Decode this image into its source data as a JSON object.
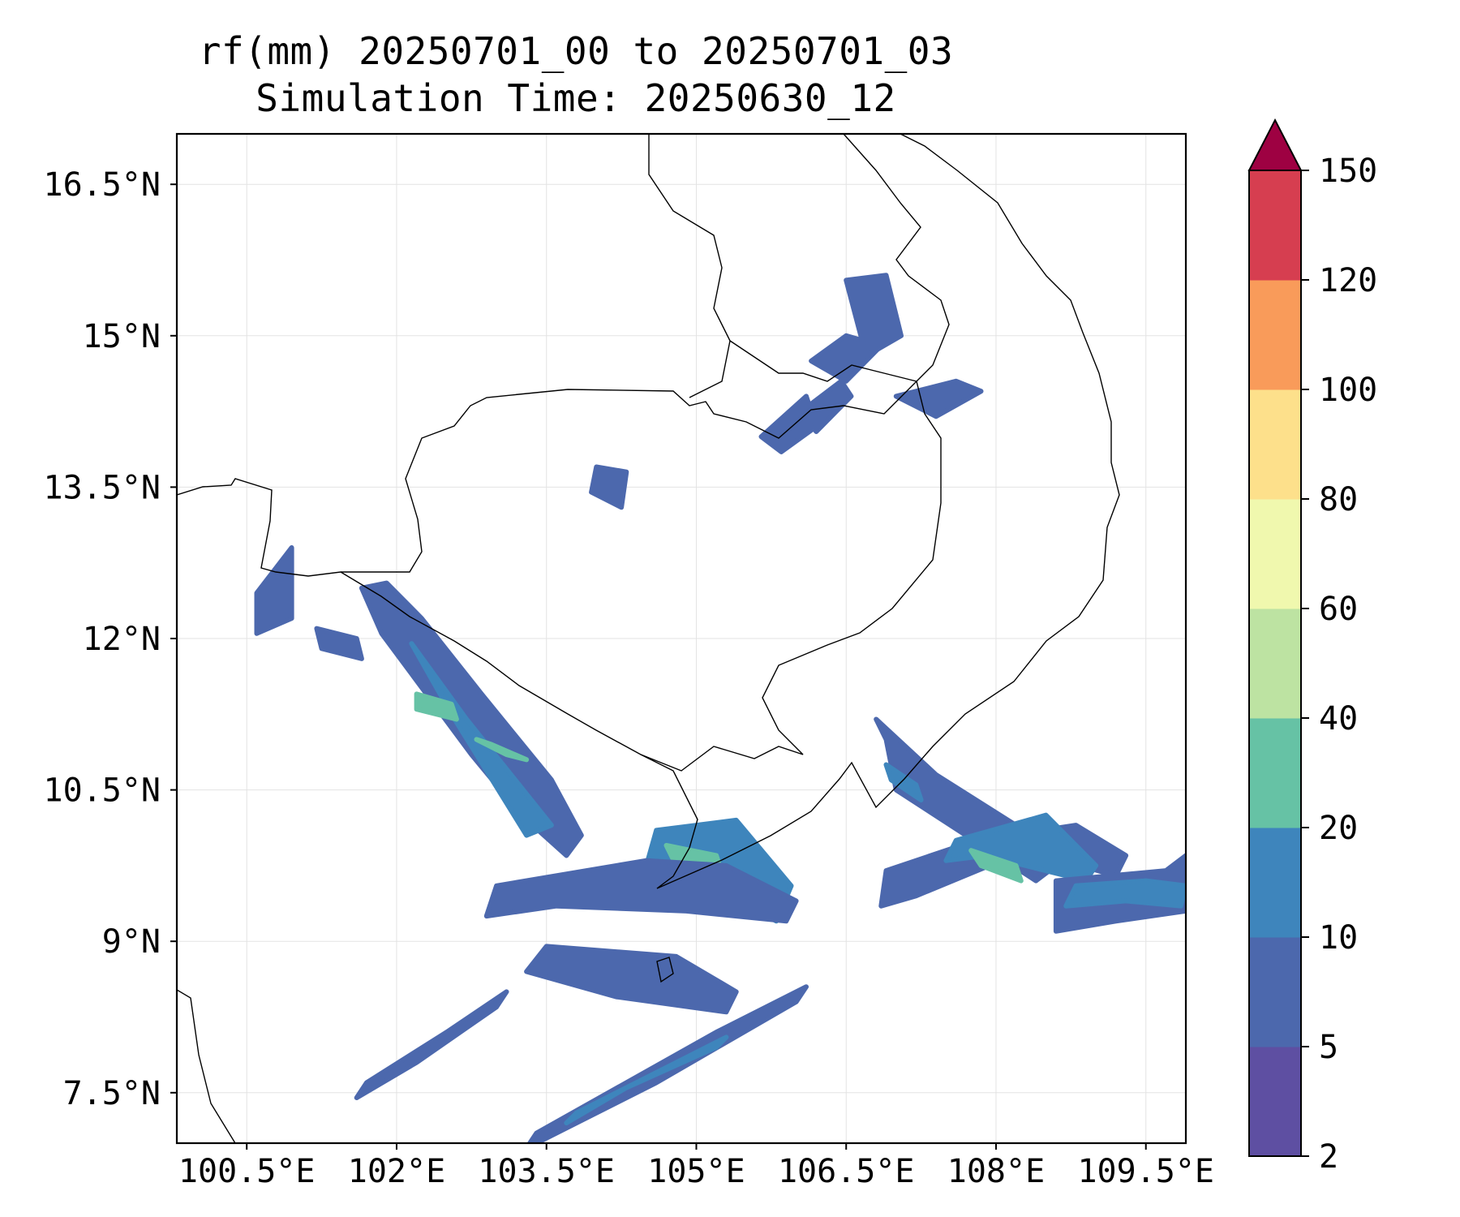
{
  "title": {
    "line1": "rf(mm) 20250701_00 to 20250701_03",
    "line2": "Simulation Time: 20250630_12"
  },
  "map": {
    "variable": "rf(mm)",
    "lon_range": [
      99.8,
      109.9
    ],
    "lat_range": [
      7.0,
      17.0
    ],
    "grid": true,
    "x_ticks": [
      {
        "value": 100.5,
        "label": "100.5°E"
      },
      {
        "value": 102.0,
        "label": "102°E"
      },
      {
        "value": 103.5,
        "label": "103.5°E"
      },
      {
        "value": 105.0,
        "label": "105°E"
      },
      {
        "value": 106.5,
        "label": "106.5°E"
      },
      {
        "value": 108.0,
        "label": "108°E"
      },
      {
        "value": 109.5,
        "label": "109.5°E"
      }
    ],
    "y_ticks": [
      {
        "value": 16.5,
        "label": "16.5°N"
      },
      {
        "value": 15.0,
        "label": "15°N"
      },
      {
        "value": 13.5,
        "label": "13.5°N"
      },
      {
        "value": 12.0,
        "label": "12°N"
      },
      {
        "value": 10.5,
        "label": "10.5°N"
      },
      {
        "value": 9.0,
        "label": "9°N"
      },
      {
        "value": 7.5,
        "label": "7.5°N"
      }
    ]
  },
  "colorbar": {
    "extend": "max",
    "extend_color": "#9e0142",
    "bins": [
      {
        "from": 2,
        "to": 5,
        "color": "#5e4fa2"
      },
      {
        "from": 5,
        "to": 10,
        "color": "#4c68ad"
      },
      {
        "from": 10,
        "to": 20,
        "color": "#3e85bc"
      },
      {
        "from": 20,
        "to": 40,
        "color": "#66c2a5"
      },
      {
        "from": 40,
        "to": 60,
        "color": "#bde3a2"
      },
      {
        "from": 60,
        "to": 80,
        "color": "#f0f8ae"
      },
      {
        "from": 80,
        "to": 100,
        "color": "#fde08b"
      },
      {
        "from": 100,
        "to": 120,
        "color": "#f99b5a"
      },
      {
        "from": 120,
        "to": 150,
        "color": "#d63e50"
      }
    ],
    "tick_labels": [
      "2",
      "5",
      "10",
      "20",
      "40",
      "60",
      "80",
      "100",
      "120",
      "150"
    ]
  },
  "rain_cells": [
    {
      "lon": [
        101.65,
        101.9,
        102.25,
        102.85,
        103.55,
        103.85,
        103.7,
        103.25,
        102.75,
        102.15,
        101.85
      ],
      "lat": [
        12.5,
        12.55,
        12.2,
        11.45,
        10.6,
        10.05,
        9.85,
        10.25,
        10.85,
        11.65,
        12.05
      ],
      "level": 2
    },
    {
      "lon": [
        102.15,
        102.7,
        103.55,
        103.3,
        102.55
      ],
      "lat": [
        11.95,
        11.2,
        10.15,
        10.05,
        11.25
      ],
      "level": 3
    },
    {
      "lon": [
        102.2,
        102.55,
        102.6,
        102.2
      ],
      "lat": [
        11.45,
        11.35,
        11.2,
        11.3
      ],
      "level": 4
    },
    {
      "lon": [
        102.8,
        102.95,
        103.3,
        103.1
      ],
      "lat": [
        11.0,
        10.95,
        10.8,
        10.85
      ],
      "level": 4
    },
    {
      "lon": [
        104.6,
        105.4,
        105.95,
        105.8,
        105.1,
        104.5
      ],
      "lat": [
        10.1,
        10.2,
        9.55,
        9.2,
        9.6,
        9.75
      ],
      "level": 3
    },
    {
      "lon": [
        104.7,
        105.2,
        105.25,
        104.8
      ],
      "lat": [
        9.95,
        9.85,
        9.7,
        9.75
      ],
      "level": 4
    },
    {
      "lon": [
        103.0,
        104.5,
        105.3,
        106.0,
        105.9,
        104.9,
        103.6,
        102.9
      ],
      "lat": [
        9.55,
        9.8,
        9.75,
        9.4,
        9.2,
        9.3,
        9.35,
        9.25
      ],
      "level": 2
    },
    {
      "lon": [
        103.5,
        104.8,
        105.4,
        105.3,
        104.2,
        103.3
      ],
      "lat": [
        8.95,
        8.85,
        8.5,
        8.3,
        8.45,
        8.7
      ],
      "level": 2
    },
    {
      "lon": [
        103.4,
        105.2,
        106.1,
        106.0,
        104.6,
        103.3
      ],
      "lat": [
        7.1,
        8.1,
        8.55,
        8.4,
        7.6,
        6.95
      ],
      "level": 2
    },
    {
      "lon": [
        103.8,
        104.8,
        105.3,
        105.2,
        104.3,
        103.7
      ],
      "lat": [
        7.3,
        7.8,
        8.05,
        7.95,
        7.55,
        7.2
      ],
      "level": 3
    },
    {
      "lon": [
        101.7,
        102.5,
        103.1,
        103.0,
        102.2,
        101.6
      ],
      "lat": [
        7.6,
        8.1,
        8.5,
        8.35,
        7.8,
        7.45
      ],
      "level": 2
    },
    {
      "lon": [
        106.8,
        107.4,
        108.2,
        108.6,
        108.4,
        107.7,
        107.0,
        106.9
      ],
      "lat": [
        11.2,
        10.65,
        10.15,
        9.75,
        9.6,
        10.05,
        10.5,
        11.0
      ],
      "level": 2
    },
    {
      "lon": [
        106.9,
        107.2,
        107.25,
        106.95
      ],
      "lat": [
        10.75,
        10.55,
        10.4,
        10.6
      ],
      "level": 3
    },
    {
      "lon": [
        106.9,
        107.8,
        108.8,
        109.3,
        109.2,
        108.3,
        107.2,
        106.85
      ],
      "lat": [
        9.7,
        10.0,
        10.15,
        9.85,
        9.65,
        9.9,
        9.45,
        9.35
      ],
      "level": 2
    },
    {
      "lon": [
        107.6,
        108.5,
        109.0,
        108.9,
        107.9,
        107.5
      ],
      "lat": [
        10.0,
        10.25,
        9.75,
        9.6,
        9.85,
        9.8
      ],
      "level": 3
    },
    {
      "lon": [
        107.75,
        108.2,
        108.25,
        107.85
      ],
      "lat": [
        9.9,
        9.75,
        9.6,
        9.75
      ],
      "level": 4
    },
    {
      "lon": [
        108.6,
        109.7,
        109.9,
        109.9,
        109.2,
        108.6
      ],
      "lat": [
        9.6,
        9.7,
        9.85,
        9.3,
        9.2,
        9.1
      ],
      "level": 2
    },
    {
      "lon": [
        108.8,
        109.5,
        109.9,
        109.85,
        109.3,
        108.7
      ],
      "lat": [
        9.55,
        9.6,
        9.55,
        9.35,
        9.4,
        9.35
      ],
      "level": 3
    },
    {
      "lon": [
        106.15,
        106.5,
        106.85,
        106.5
      ],
      "lat": [
        14.75,
        15.0,
        14.9,
        14.55
      ],
      "level": 2
    },
    {
      "lon": [
        106.2,
        106.55,
        106.45,
        106.05
      ],
      "lat": [
        14.05,
        14.4,
        14.55,
        14.25
      ],
      "level": 2
    },
    {
      "lon": [
        106.5,
        106.9,
        107.05,
        106.7
      ],
      "lat": [
        15.55,
        15.6,
        15.0,
        14.8
      ],
      "level": 2
    },
    {
      "lon": [
        107.0,
        107.6,
        107.85,
        107.4
      ],
      "lat": [
        14.4,
        14.55,
        14.45,
        14.2
      ],
      "level": 2
    },
    {
      "lon": [
        105.65,
        106.1,
        106.2,
        105.85
      ],
      "lat": [
        14.0,
        14.4,
        14.1,
        13.85
      ],
      "level": 2
    },
    {
      "lon": [
        100.6,
        100.95,
        100.95,
        100.6
      ],
      "lat": [
        12.45,
        12.9,
        12.2,
        12.05
      ],
      "level": 2
    },
    {
      "lon": [
        104.0,
        104.3,
        104.25,
        103.95
      ],
      "lat": [
        13.7,
        13.65,
        13.3,
        13.45
      ],
      "level": 2
    },
    {
      "lon": [
        101.2,
        101.6,
        101.65,
        101.25
      ],
      "lat": [
        12.1,
        12.0,
        11.8,
        11.9
      ],
      "level": 2
    }
  ]
}
